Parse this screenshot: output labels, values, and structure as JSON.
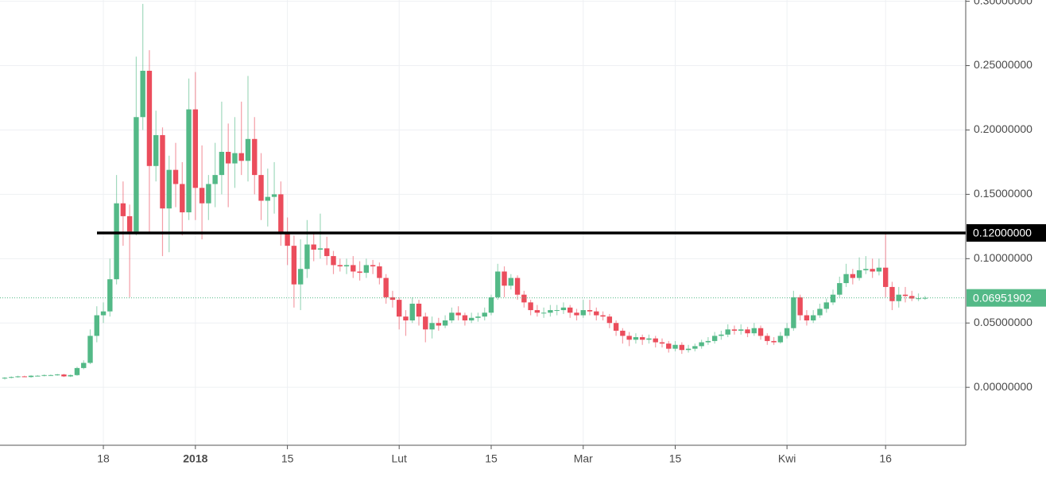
{
  "chart_data": {
    "type": "candlestick",
    "up_color": "#53b987",
    "down_color": "#eb4d5c",
    "grid": true,
    "ylim": [
      -0.045,
      0.301
    ],
    "yticks": [
      {
        "value": 0,
        "label": "0.00000000"
      },
      {
        "value": 0.05,
        "label": "0.05000000"
      },
      {
        "value": 0.1,
        "label": "0.10000000"
      },
      {
        "value": 0.15,
        "label": "0.15000000"
      },
      {
        "value": 0.2,
        "label": "0.20000000"
      },
      {
        "value": 0.25,
        "label": "0.25000000"
      },
      {
        "value": 0.3,
        "label": "0.30000000"
      }
    ],
    "lines": [
      {
        "value": 0.12,
        "label": "0.12000000",
        "color": "#000000"
      },
      {
        "value": 0.06951902,
        "label": "0.06951902",
        "color": "#53b987"
      }
    ],
    "categories": [
      null,
      null,
      null,
      null,
      null,
      null,
      null,
      null,
      null,
      null,
      null,
      null,
      null,
      null,
      null,
      "18",
      null,
      null,
      null,
      null,
      null,
      null,
      null,
      null,
      null,
      null,
      null,
      null,
      null,
      "2018",
      null,
      null,
      null,
      null,
      null,
      null,
      null,
      null,
      null,
      null,
      null,
      null,
      null,
      "15",
      null,
      null,
      null,
      null,
      null,
      null,
      null,
      null,
      null,
      null,
      null,
      null,
      null,
      null,
      null,
      null,
      "Lut",
      null,
      null,
      null,
      null,
      null,
      null,
      null,
      null,
      null,
      null,
      null,
      null,
      null,
      "15",
      null,
      null,
      null,
      null,
      null,
      null,
      null,
      null,
      null,
      null,
      null,
      null,
      null,
      "Mar",
      null,
      null,
      null,
      null,
      null,
      null,
      null,
      null,
      null,
      null,
      null,
      null,
      null,
      "15",
      null,
      null,
      null,
      null,
      null,
      null,
      null,
      null,
      null,
      null,
      null,
      null,
      null,
      null,
      null,
      null,
      "Kwi",
      null,
      null,
      null,
      null,
      null,
      null,
      null,
      null,
      null,
      null,
      null,
      null,
      null,
      null,
      "16",
      null,
      null,
      null,
      null,
      null,
      null
    ],
    "ohlc": [
      [
        0.007,
        0.008,
        0.006,
        0.0075
      ],
      [
        0.0075,
        0.0085,
        0.007,
        0.008
      ],
      [
        0.008,
        0.009,
        0.0075,
        0.0085
      ],
      [
        0.0085,
        0.009,
        0.008,
        0.008
      ],
      [
        0.008,
        0.0095,
        0.0075,
        0.009
      ],
      [
        0.009,
        0.0095,
        0.0085,
        0.009
      ],
      [
        0.009,
        0.01,
        0.0085,
        0.0095
      ],
      [
        0.0095,
        0.01,
        0.009,
        0.0095
      ],
      [
        0.0095,
        0.0105,
        0.009,
        0.01
      ],
      [
        0.01,
        0.0105,
        0.008,
        0.0085
      ],
      [
        0.0085,
        0.01,
        0.008,
        0.0095
      ],
      [
        0.0095,
        0.016,
        0.009,
        0.015
      ],
      [
        0.015,
        0.021,
        0.014,
        0.019
      ],
      [
        0.019,
        0.045,
        0.018,
        0.04
      ],
      [
        0.04,
        0.063,
        0.035,
        0.056
      ],
      [
        0.056,
        0.066,
        0.05,
        0.059
      ],
      [
        0.059,
        0.1,
        0.055,
        0.084
      ],
      [
        0.084,
        0.165,
        0.08,
        0.143
      ],
      [
        0.143,
        0.16,
        0.11,
        0.133
      ],
      [
        0.133,
        0.142,
        0.07,
        0.121
      ],
      [
        0.121,
        0.257,
        0.118,
        0.21
      ],
      [
        0.21,
        0.298,
        0.2,
        0.246
      ],
      [
        0.246,
        0.262,
        0.12,
        0.172
      ],
      [
        0.172,
        0.215,
        0.16,
        0.196
      ],
      [
        0.196,
        0.202,
        0.102,
        0.139
      ],
      [
        0.139,
        0.18,
        0.105,
        0.169
      ],
      [
        0.169,
        0.19,
        0.14,
        0.158
      ],
      [
        0.158,
        0.175,
        0.118,
        0.136
      ],
      [
        0.136,
        0.24,
        0.13,
        0.216
      ],
      [
        0.216,
        0.245,
        0.13,
        0.155
      ],
      [
        0.155,
        0.188,
        0.115,
        0.143
      ],
      [
        0.143,
        0.165,
        0.13,
        0.158
      ],
      [
        0.158,
        0.19,
        0.14,
        0.165
      ],
      [
        0.165,
        0.222,
        0.15,
        0.183
      ],
      [
        0.183,
        0.205,
        0.14,
        0.174
      ],
      [
        0.174,
        0.21,
        0.155,
        0.182
      ],
      [
        0.182,
        0.222,
        0.165,
        0.176
      ],
      [
        0.176,
        0.242,
        0.16,
        0.193
      ],
      [
        0.193,
        0.21,
        0.15,
        0.165
      ],
      [
        0.165,
        0.182,
        0.13,
        0.145
      ],
      [
        0.145,
        0.17,
        0.125,
        0.148
      ],
      [
        0.148,
        0.175,
        0.135,
        0.15
      ],
      [
        0.15,
        0.16,
        0.11,
        0.12
      ],
      [
        0.12,
        0.132,
        0.095,
        0.11
      ],
      [
        0.11,
        0.118,
        0.062,
        0.08
      ],
      [
        0.08,
        0.115,
        0.06,
        0.092
      ],
      [
        0.092,
        0.13,
        0.085,
        0.111
      ],
      [
        0.111,
        0.12,
        0.098,
        0.107
      ],
      [
        0.107,
        0.135,
        0.1,
        0.108
      ],
      [
        0.108,
        0.117,
        0.095,
        0.102
      ],
      [
        0.102,
        0.106,
        0.088,
        0.095
      ],
      [
        0.095,
        0.1,
        0.09,
        0.094
      ],
      [
        0.094,
        0.1,
        0.088,
        0.095
      ],
      [
        0.095,
        0.102,
        0.085,
        0.09
      ],
      [
        0.09,
        0.098,
        0.083,
        0.089
      ],
      [
        0.089,
        0.1,
        0.085,
        0.095
      ],
      [
        0.095,
        0.099,
        0.088,
        0.094
      ],
      [
        0.094,
        0.097,
        0.08,
        0.085
      ],
      [
        0.085,
        0.088,
        0.065,
        0.07
      ],
      [
        0.07,
        0.075,
        0.062,
        0.068
      ],
      [
        0.068,
        0.07,
        0.045,
        0.055
      ],
      [
        0.055,
        0.06,
        0.04,
        0.052
      ],
      [
        0.052,
        0.07,
        0.05,
        0.065
      ],
      [
        0.065,
        0.068,
        0.048,
        0.055
      ],
      [
        0.055,
        0.058,
        0.035,
        0.045
      ],
      [
        0.045,
        0.055,
        0.038,
        0.05
      ],
      [
        0.05,
        0.054,
        0.044,
        0.048
      ],
      [
        0.048,
        0.056,
        0.046,
        0.052
      ],
      [
        0.052,
        0.062,
        0.05,
        0.058
      ],
      [
        0.058,
        0.063,
        0.052,
        0.056
      ],
      [
        0.056,
        0.058,
        0.048,
        0.052
      ],
      [
        0.052,
        0.058,
        0.05,
        0.054
      ],
      [
        0.054,
        0.058,
        0.051,
        0.055
      ],
      [
        0.055,
        0.062,
        0.052,
        0.058
      ],
      [
        0.058,
        0.072,
        0.056,
        0.07
      ],
      [
        0.07,
        0.096,
        0.068,
        0.09
      ],
      [
        0.09,
        0.094,
        0.07,
        0.079
      ],
      [
        0.079,
        0.088,
        0.076,
        0.085
      ],
      [
        0.085,
        0.087,
        0.068,
        0.072
      ],
      [
        0.072,
        0.075,
        0.062,
        0.066
      ],
      [
        0.066,
        0.068,
        0.056,
        0.06
      ],
      [
        0.06,
        0.064,
        0.055,
        0.058
      ],
      [
        0.058,
        0.062,
        0.054,
        0.058
      ],
      [
        0.058,
        0.064,
        0.055,
        0.06
      ],
      [
        0.06,
        0.064,
        0.056,
        0.06
      ],
      [
        0.06,
        0.066,
        0.057,
        0.062
      ],
      [
        0.062,
        0.064,
        0.054,
        0.058
      ],
      [
        0.058,
        0.061,
        0.052,
        0.056
      ],
      [
        0.056,
        0.068,
        0.054,
        0.06
      ],
      [
        0.06,
        0.068,
        0.056,
        0.059
      ],
      [
        0.059,
        0.062,
        0.052,
        0.056
      ],
      [
        0.056,
        0.059,
        0.052,
        0.055
      ],
      [
        0.055,
        0.057,
        0.046,
        0.05
      ],
      [
        0.05,
        0.052,
        0.04,
        0.044
      ],
      [
        0.044,
        0.046,
        0.034,
        0.04
      ],
      [
        0.04,
        0.043,
        0.032,
        0.037
      ],
      [
        0.037,
        0.042,
        0.034,
        0.039
      ],
      [
        0.039,
        0.041,
        0.033,
        0.037
      ],
      [
        0.037,
        0.041,
        0.034,
        0.038
      ],
      [
        0.038,
        0.04,
        0.031,
        0.035
      ],
      [
        0.035,
        0.038,
        0.031,
        0.034
      ],
      [
        0.034,
        0.036,
        0.027,
        0.03
      ],
      [
        0.03,
        0.036,
        0.028,
        0.033
      ],
      [
        0.033,
        0.035,
        0.026,
        0.029
      ],
      [
        0.029,
        0.033,
        0.027,
        0.03
      ],
      [
        0.03,
        0.034,
        0.028,
        0.032
      ],
      [
        0.032,
        0.037,
        0.03,
        0.035
      ],
      [
        0.035,
        0.039,
        0.033,
        0.036
      ],
      [
        0.036,
        0.043,
        0.034,
        0.04
      ],
      [
        0.04,
        0.044,
        0.037,
        0.041
      ],
      [
        0.041,
        0.049,
        0.039,
        0.045
      ],
      [
        0.045,
        0.048,
        0.041,
        0.044
      ],
      [
        0.044,
        0.049,
        0.041,
        0.045
      ],
      [
        0.045,
        0.047,
        0.039,
        0.042
      ],
      [
        0.042,
        0.05,
        0.04,
        0.046
      ],
      [
        0.046,
        0.048,
        0.037,
        0.04
      ],
      [
        0.04,
        0.042,
        0.033,
        0.036
      ],
      [
        0.036,
        0.039,
        0.033,
        0.035
      ],
      [
        0.035,
        0.043,
        0.034,
        0.04
      ],
      [
        0.04,
        0.05,
        0.038,
        0.046
      ],
      [
        0.046,
        0.075,
        0.044,
        0.07
      ],
      [
        0.07,
        0.072,
        0.052,
        0.056
      ],
      [
        0.056,
        0.06,
        0.048,
        0.052
      ],
      [
        0.052,
        0.06,
        0.05,
        0.056
      ],
      [
        0.056,
        0.065,
        0.054,
        0.061
      ],
      [
        0.061,
        0.069,
        0.058,
        0.066
      ],
      [
        0.066,
        0.076,
        0.064,
        0.072
      ],
      [
        0.072,
        0.086,
        0.07,
        0.081
      ],
      [
        0.081,
        0.096,
        0.078,
        0.088
      ],
      [
        0.088,
        0.092,
        0.08,
        0.085
      ],
      [
        0.085,
        0.101,
        0.083,
        0.091
      ],
      [
        0.091,
        0.102,
        0.088,
        0.092
      ],
      [
        0.092,
        0.1,
        0.085,
        0.09
      ],
      [
        0.09,
        0.1,
        0.087,
        0.093
      ],
      [
        0.093,
        0.12,
        0.07,
        0.078
      ],
      [
        0.078,
        0.082,
        0.06,
        0.067
      ],
      [
        0.067,
        0.078,
        0.062,
        0.072
      ],
      [
        0.072,
        0.078,
        0.066,
        0.071
      ],
      [
        0.071,
        0.075,
        0.067,
        0.069
      ],
      [
        0.069,
        0.073,
        0.067,
        0.0692
      ],
      [
        0.0692,
        0.071,
        0.068,
        0.06951902
      ]
    ]
  }
}
